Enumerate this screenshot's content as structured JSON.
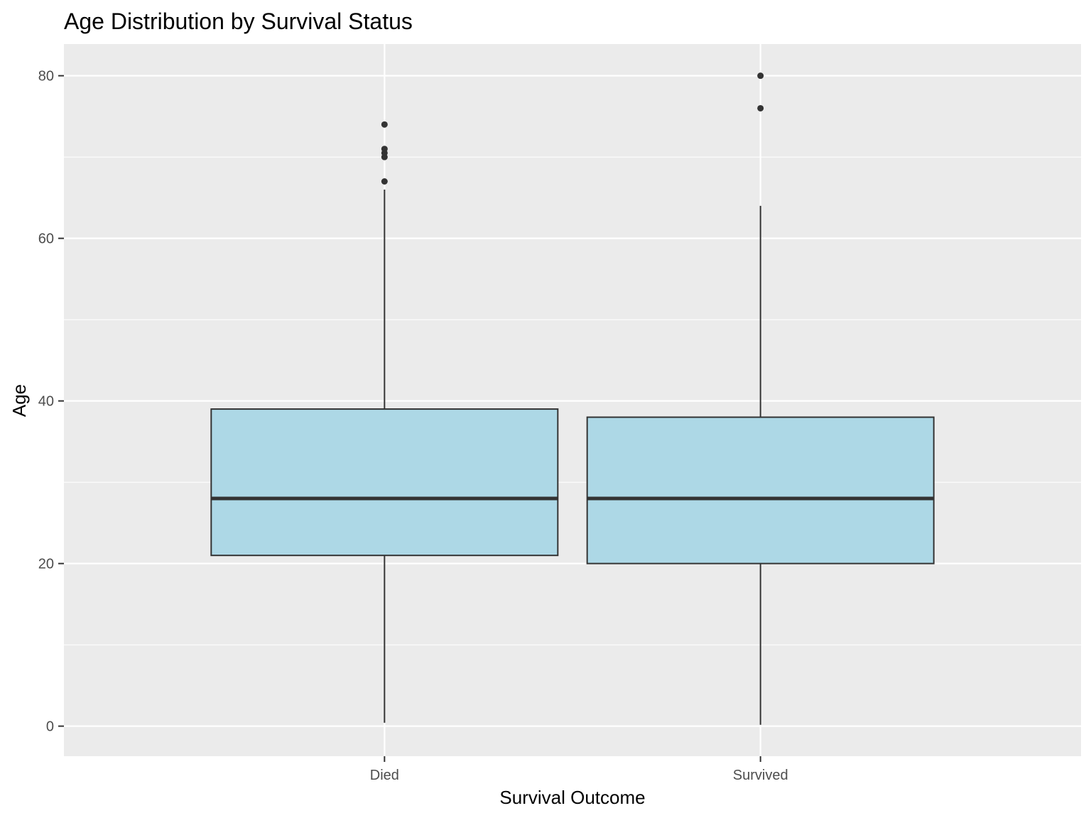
{
  "chart_data": {
    "type": "boxplot",
    "title": "Age Distribution by Survival Status",
    "xlabel": "Survival Outcome",
    "ylabel": "Age",
    "categories": [
      "Died",
      "Survived"
    ],
    "ylim": [
      -3.7,
      83.9
    ],
    "yticks": [
      0,
      20,
      40,
      60,
      80
    ],
    "yminor": [
      10,
      30,
      50,
      70
    ],
    "grid": true,
    "legend": "none",
    "boxes": [
      {
        "name": "Died",
        "whisker_low": 0.42,
        "q1": 21,
        "median": 28,
        "q3": 39,
        "whisker_high": 66,
        "outliers": [
          67,
          70,
          70.5,
          71,
          74
        ]
      },
      {
        "name": "Survived",
        "whisker_low": 0.17,
        "q1": 20,
        "median": 28,
        "q3": 38,
        "whisker_high": 64,
        "outliers": [
          76,
          80
        ]
      }
    ],
    "colors": {
      "box_fill": "#add8e6",
      "box_stroke": "#333333",
      "panel_bg": "#ebebeb",
      "grid": "#ffffff",
      "tick_text": "#4d4d4d",
      "title_text": "#000000"
    }
  }
}
